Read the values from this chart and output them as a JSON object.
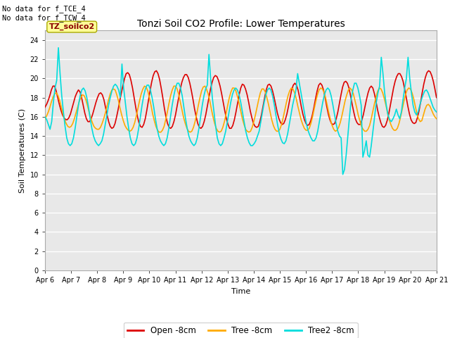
{
  "title": "Tonzi Soil CO2 Profile: Lower Temperatures",
  "ylabel": "Soil Temperatures (C)",
  "xlabel": "Time",
  "corner_text": "No data for f_TCE_4\nNo data for f_TCW_4",
  "box_label": "TZ_soilco2",
  "ylim": [
    0,
    25
  ],
  "yticks": [
    0,
    2,
    4,
    6,
    8,
    10,
    12,
    14,
    16,
    18,
    20,
    22,
    24
  ],
  "xtick_labels": [
    "Apr 6",
    "Apr 7",
    "Apr 8",
    "Apr 9",
    "Apr 10",
    "Apr 11",
    "Apr 12",
    "Apr 13",
    "Apr 14",
    "Apr 15",
    "Apr 16",
    "Apr 17",
    "Apr 18",
    "Apr 19",
    "Apr 20",
    "Apr 21"
  ],
  "fig_bg": "#ffffff",
  "plot_bg": "#e8e8e8",
  "grid_color": "#ffffff",
  "series_open_color": "#dd0000",
  "series_tree_color": "#ffaa00",
  "series_tree2_color": "#00dddd",
  "series_open_label": "Open -8cm",
  "series_tree_label": "Tree -8cm",
  "series_tree2_label": "Tree2 -8cm",
  "lw": 1.2,
  "open_y": [
    17.0,
    17.3,
    17.7,
    18.2,
    18.8,
    19.2,
    19.2,
    18.7,
    18.0,
    17.3,
    16.7,
    16.2,
    15.9,
    15.7,
    15.7,
    15.9,
    16.3,
    16.9,
    17.5,
    18.1,
    18.5,
    18.8,
    18.6,
    18.0,
    17.2,
    16.4,
    15.8,
    15.5,
    15.5,
    15.8,
    16.3,
    16.9,
    17.5,
    18.0,
    18.4,
    18.5,
    18.3,
    17.8,
    17.0,
    16.2,
    15.5,
    15.0,
    14.8,
    14.9,
    15.3,
    16.0,
    16.8,
    17.7,
    18.5,
    19.3,
    20.0,
    20.5,
    20.6,
    20.4,
    19.8,
    19.0,
    18.0,
    17.0,
    16.1,
    15.4,
    15.0,
    14.9,
    15.2,
    15.8,
    16.7,
    17.7,
    18.7,
    19.6,
    20.3,
    20.7,
    20.8,
    20.5,
    19.9,
    19.0,
    18.0,
    16.9,
    16.0,
    15.3,
    14.9,
    14.8,
    15.0,
    15.5,
    16.2,
    17.1,
    18.0,
    18.9,
    19.6,
    20.1,
    20.4,
    20.4,
    20.1,
    19.5,
    18.7,
    17.8,
    16.8,
    16.0,
    15.3,
    14.9,
    14.8,
    15.0,
    15.5,
    16.2,
    17.1,
    18.0,
    18.9,
    19.6,
    20.1,
    20.3,
    20.2,
    19.8,
    19.2,
    18.4,
    17.5,
    16.6,
    15.8,
    15.2,
    14.8,
    14.8,
    15.1,
    15.7,
    16.5,
    17.4,
    18.3,
    19.0,
    19.4,
    19.3,
    18.9,
    18.3,
    17.5,
    16.6,
    15.9,
    15.3,
    15.0,
    14.9,
    15.0,
    15.5,
    16.2,
    17.1,
    18.0,
    18.8,
    19.3,
    19.4,
    19.2,
    18.7,
    18.0,
    17.2,
    16.4,
    15.8,
    15.4,
    15.2,
    15.3,
    15.7,
    16.3,
    17.1,
    18.0,
    18.8,
    19.3,
    19.5,
    19.3,
    18.8,
    18.0,
    17.1,
    16.3,
    15.7,
    15.3,
    15.1,
    15.2,
    15.6,
    16.2,
    17.0,
    17.9,
    18.7,
    19.3,
    19.5,
    19.3,
    18.8,
    18.0,
    17.1,
    16.3,
    15.7,
    15.3,
    15.2,
    15.3,
    15.8,
    16.5,
    17.4,
    18.3,
    19.1,
    19.6,
    19.7,
    19.5,
    19.0,
    18.2,
    17.3,
    16.5,
    15.8,
    15.4,
    15.2,
    15.2,
    15.6,
    16.2,
    17.0,
    17.8,
    18.5,
    19.0,
    19.2,
    19.0,
    18.4,
    17.6,
    16.7,
    16.0,
    15.4,
    15.0,
    14.9,
    15.1,
    15.6,
    16.3,
    17.2,
    18.1,
    19.0,
    19.7,
    20.2,
    20.5,
    20.5,
    20.2,
    19.7,
    18.9,
    18.0,
    17.1,
    16.3,
    15.7,
    15.4,
    15.3,
    15.4,
    15.9,
    16.6,
    17.5,
    18.5,
    19.4,
    20.1,
    20.6,
    20.8,
    20.7,
    20.3,
    19.7,
    18.9,
    18.0
  ],
  "tree_y": [
    15.8,
    16.1,
    16.5,
    17.0,
    17.6,
    18.1,
    18.4,
    18.5,
    18.2,
    17.7,
    17.0,
    16.3,
    15.7,
    15.3,
    15.0,
    14.9,
    15.0,
    15.3,
    15.8,
    16.4,
    17.0,
    17.6,
    18.0,
    18.3,
    18.2,
    17.8,
    17.2,
    16.5,
    15.9,
    15.4,
    15.0,
    14.8,
    14.7,
    14.7,
    14.9,
    15.3,
    15.8,
    16.4,
    17.1,
    17.8,
    18.4,
    18.8,
    18.9,
    18.8,
    18.3,
    17.7,
    16.9,
    16.2,
    15.6,
    15.1,
    14.8,
    14.6,
    14.5,
    14.6,
    14.9,
    15.4,
    16.1,
    16.9,
    17.7,
    18.4,
    18.9,
    19.2,
    19.1,
    18.7,
    18.0,
    17.2,
    16.3,
    15.6,
    15.0,
    14.6,
    14.4,
    14.4,
    14.6,
    15.0,
    15.7,
    16.5,
    17.4,
    18.2,
    18.8,
    19.2,
    19.2,
    18.9,
    18.3,
    17.5,
    16.7,
    15.9,
    15.3,
    14.8,
    14.5,
    14.4,
    14.5,
    14.9,
    15.5,
    16.3,
    17.2,
    18.0,
    18.7,
    19.1,
    19.2,
    18.9,
    18.4,
    17.7,
    16.8,
    16.0,
    15.3,
    14.8,
    14.5,
    14.4,
    14.5,
    14.9,
    15.5,
    16.3,
    17.2,
    18.0,
    18.6,
    19.0,
    19.0,
    18.7,
    18.1,
    17.4,
    16.6,
    15.8,
    15.2,
    14.7,
    14.5,
    14.4,
    14.5,
    14.9,
    15.5,
    16.2,
    17.0,
    17.8,
    18.5,
    18.9,
    18.9,
    18.6,
    18.0,
    17.3,
    16.5,
    15.7,
    15.1,
    14.7,
    14.5,
    14.5,
    14.7,
    15.2,
    15.9,
    16.7,
    17.5,
    18.2,
    18.7,
    19.0,
    18.9,
    18.5,
    17.9,
    17.1,
    16.4,
    15.7,
    15.2,
    14.8,
    14.6,
    14.6,
    14.8,
    15.3,
    16.0,
    16.8,
    17.6,
    18.3,
    18.8,
    19.0,
    18.9,
    18.6,
    18.0,
    17.2,
    16.4,
    15.7,
    15.1,
    14.7,
    14.5,
    14.6,
    14.9,
    15.4,
    16.1,
    16.9,
    17.7,
    18.3,
    18.8,
    19.0,
    18.8,
    18.4,
    17.7,
    17.0,
    16.2,
    15.6,
    15.0,
    14.7,
    14.5,
    14.5,
    14.7,
    15.1,
    15.8,
    16.6,
    17.4,
    18.1,
    18.7,
    19.0,
    18.9,
    18.5,
    17.9,
    17.2,
    16.4,
    15.7,
    15.2,
    14.8,
    14.6,
    14.6,
    14.8,
    15.3,
    16.0,
    16.8,
    17.6,
    18.3,
    18.8,
    19.0,
    18.9,
    18.5,
    17.9,
    17.1,
    16.3,
    15.8,
    15.5,
    15.6,
    16.2,
    16.8,
    17.2,
    17.3,
    17.1,
    16.7,
    16.3,
    16.0,
    15.8
  ],
  "tree2_y": [
    16.0,
    15.7,
    15.2,
    14.7,
    15.5,
    17.5,
    19.0,
    19.8,
    23.2,
    20.5,
    18.2,
    16.5,
    15.0,
    13.8,
    13.2,
    13.0,
    13.2,
    13.8,
    14.8,
    16.0,
    17.2,
    18.2,
    18.8,
    19.0,
    18.7,
    18.0,
    17.0,
    15.8,
    14.8,
    14.0,
    13.5,
    13.2,
    13.0,
    13.2,
    13.5,
    14.2,
    15.2,
    16.2,
    17.2,
    18.0,
    18.7,
    19.2,
    19.4,
    19.2,
    18.8,
    18.0,
    21.5,
    19.0,
    17.5,
    16.0,
    14.8,
    13.8,
    13.2,
    13.0,
    13.2,
    13.8,
    14.8,
    16.0,
    17.2,
    18.2,
    18.9,
    19.3,
    19.3,
    18.8,
    18.0,
    17.0,
    15.8,
    14.8,
    14.0,
    13.5,
    13.2,
    13.0,
    13.2,
    13.8,
    14.8,
    16.0,
    17.2,
    18.2,
    19.0,
    19.5,
    19.5,
    19.0,
    18.2,
    17.0,
    15.8,
    14.8,
    14.0,
    13.5,
    13.2,
    13.0,
    13.2,
    13.8,
    14.8,
    16.0,
    17.2,
    18.2,
    18.9,
    19.3,
    22.5,
    20.0,
    18.0,
    16.5,
    15.0,
    13.8,
    13.2,
    13.0,
    13.2,
    13.8,
    14.5,
    15.5,
    16.5,
    17.5,
    18.3,
    18.8,
    19.0,
    18.8,
    18.3,
    17.5,
    16.5,
    15.5,
    14.5,
    13.8,
    13.3,
    13.0,
    13.0,
    13.2,
    13.5,
    14.0,
    14.5,
    15.5,
    16.5,
    17.5,
    18.3,
    18.8,
    19.0,
    18.8,
    18.2,
    17.3,
    16.2,
    15.2,
    14.3,
    13.7,
    13.3,
    13.2,
    13.5,
    14.2,
    15.2,
    16.2,
    17.2,
    18.0,
    18.8,
    20.5,
    19.5,
    18.5,
    17.5,
    16.5,
    15.5,
    14.7,
    14.2,
    13.8,
    13.5,
    13.5,
    13.8,
    14.5,
    15.5,
    16.5,
    17.5,
    18.3,
    18.8,
    19.0,
    18.8,
    18.2,
    17.3,
    16.3,
    15.3,
    14.5,
    14.0,
    13.8,
    10.0,
    10.5,
    12.0,
    14.0,
    16.0,
    17.8,
    18.8,
    19.5,
    19.5,
    19.0,
    18.2,
    17.2,
    11.8,
    12.5,
    13.5,
    12.0,
    11.8,
    13.0,
    14.5,
    16.0,
    17.5,
    18.5,
    19.2,
    22.2,
    20.5,
    18.5,
    17.2,
    16.2,
    15.7,
    15.5,
    15.8,
    16.2,
    16.8,
    16.2,
    15.8,
    16.5,
    17.8,
    19.0,
    20.0,
    22.2,
    20.0,
    18.5,
    17.2,
    16.5,
    16.2,
    16.5,
    17.2,
    17.8,
    18.3,
    18.7,
    18.8,
    18.5,
    18.0,
    17.5,
    17.0,
    16.7,
    16.5
  ]
}
